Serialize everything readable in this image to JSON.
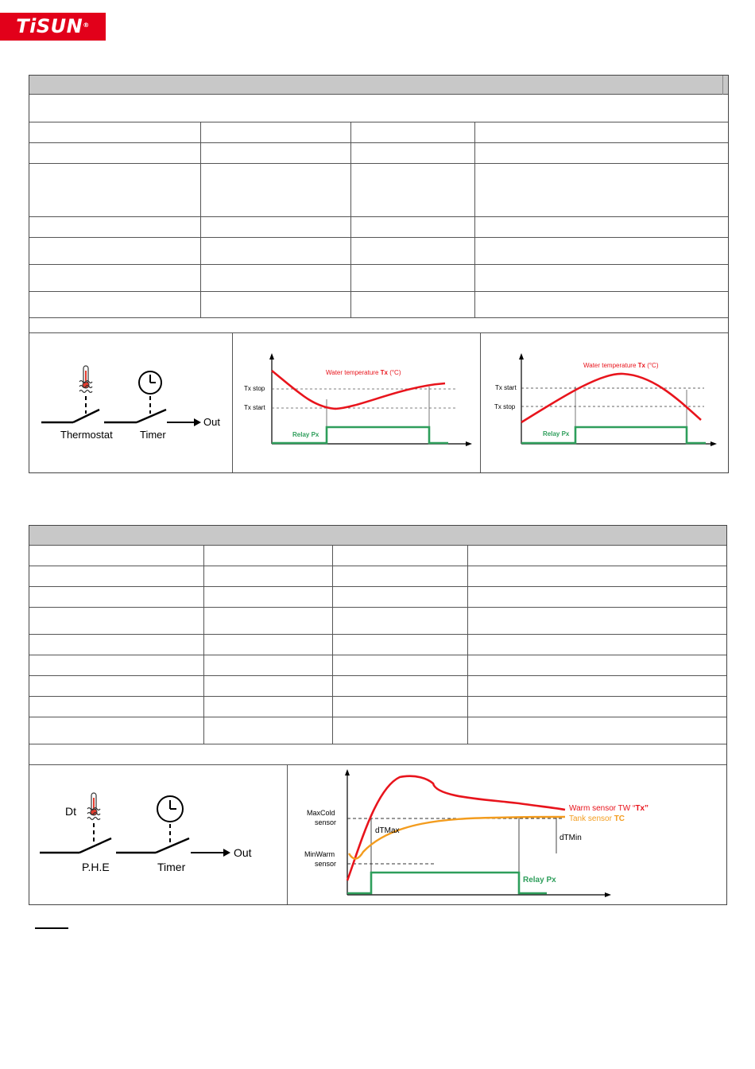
{
  "header": {
    "logo_text": "TiSUN",
    "logo_mark": "®",
    "brand_color": "#e2001a"
  },
  "section1": {
    "schematic": {
      "thermostat_label": "Thermostat",
      "timer_label": "Timer",
      "out_label": "Out",
      "thermometer_icon": "thermometer-icon",
      "clock_icon": "clock-icon"
    },
    "graph_cooling": {
      "curve_label_prefix": "Water temperature ",
      "curve_label_bold": "Tx",
      "curve_label_suffix": " (°C)",
      "upper_label": "Tx stop",
      "lower_label": "Tx start",
      "relay_label": "Relay Px"
    },
    "graph_heating": {
      "curve_label_prefix": "Water temperature ",
      "curve_label_bold": "Tx",
      "curve_label_suffix": " (°C)",
      "upper_label": "Tx start",
      "lower_label": "Tx stop",
      "relay_label": "Relay Px"
    }
  },
  "section2": {
    "schematic": {
      "dt_label": "Dt",
      "phe_label": "P.H.E",
      "timer_label": "Timer",
      "out_label": "Out",
      "thermometer_icon": "thermometer-icon",
      "clock_icon": "clock-icon"
    },
    "graph": {
      "maxcold_label_1": "MaxCold",
      "maxcold_label_2": "sensor",
      "minwarm_label_1": "MinWarm",
      "minwarm_label_2": "sensor",
      "dtmax_label": "dTMax",
      "dtmin_label": "dTMin",
      "warm_label_prefix": "Warm sensor TW “",
      "warm_label_bold": "Tx”",
      "tank_label_prefix": "Tank sensor ",
      "tank_label_bold": "TC",
      "relay_label": "Relay Px"
    }
  },
  "colors": {
    "red_curve": "#e8141c",
    "orange_curve": "#f39c1e",
    "green_relay": "#2e9e5b",
    "header_bar": "#c8c8c8"
  }
}
